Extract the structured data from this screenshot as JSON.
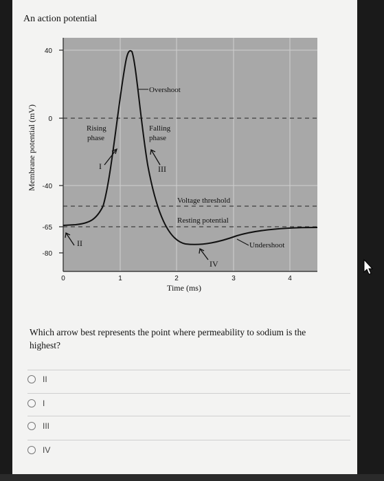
{
  "header": {
    "title": "An action potential"
  },
  "graph": {
    "y_label": "Membrane potential (mV)",
    "x_label": "Time (ms)",
    "y_ticks": [
      "40",
      "0",
      "-40",
      "-65",
      "-80"
    ],
    "x_ticks": [
      "0",
      "1",
      "2",
      "3",
      "4"
    ],
    "annotations": {
      "overshoot": "Overshoot",
      "rising": "Rising",
      "rising2": "phase",
      "falling": "Falling",
      "falling2": "phase",
      "voltage_threshold": "Voltage threshold",
      "resting_potential": "Resting potential",
      "undershoot": "Undershoot"
    },
    "arrows": {
      "I": "I",
      "II": "II",
      "III": "III",
      "IV": "IV"
    },
    "colors": {
      "plot_bg": "#a8a8a8",
      "curve": "#111111"
    }
  },
  "question": {
    "text": "Which arrow best represents the point where permeability to sodium is the highest?"
  },
  "options": [
    {
      "label": "II"
    },
    {
      "label": "I"
    },
    {
      "label": "III"
    },
    {
      "label": "IV"
    }
  ]
}
